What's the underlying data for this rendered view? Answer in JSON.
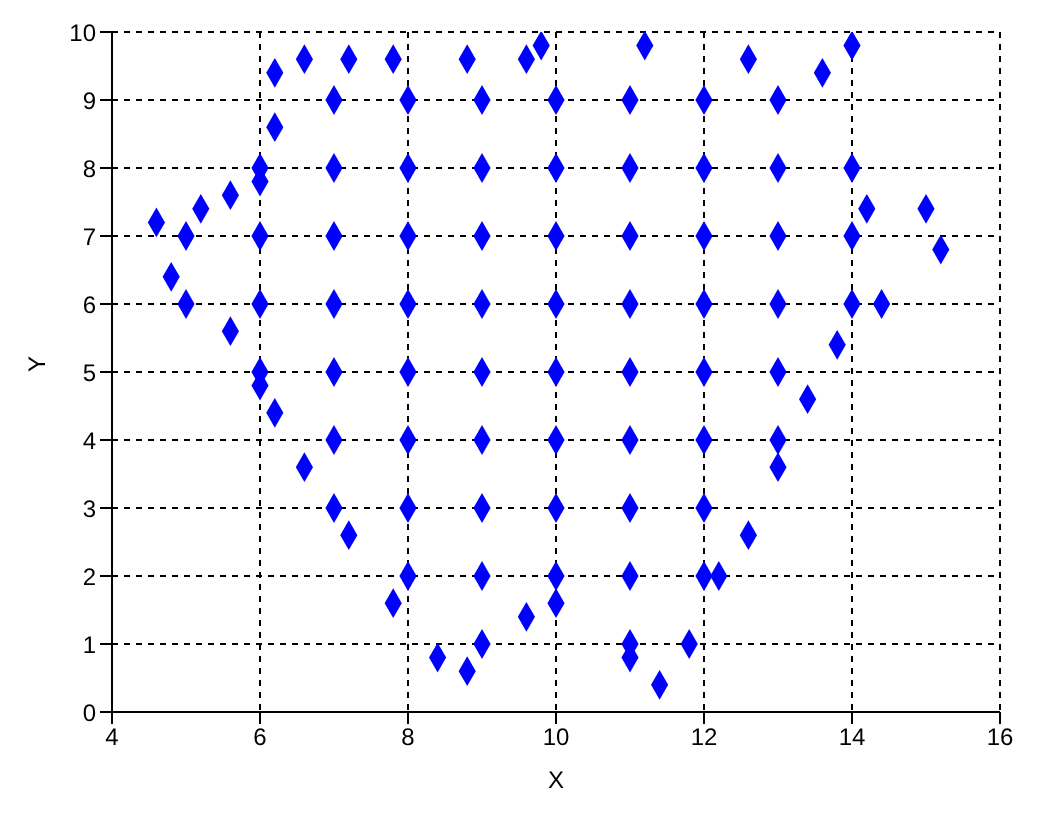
{
  "chart_data": {
    "type": "scatter",
    "xlabel": "X",
    "ylabel": "Y",
    "xlim": [
      4,
      16
    ],
    "xticks": [
      4,
      6,
      8,
      10,
      12,
      14,
      16
    ],
    "ylim": [
      0,
      10
    ],
    "yticks": [
      0,
      1,
      2,
      3,
      4,
      5,
      6,
      7,
      8,
      9,
      10
    ],
    "grid": true,
    "marker": "diamond",
    "legend": false,
    "series": [
      {
        "color": "#0000ff",
        "x": [
          4.6,
          5.2,
          4.8,
          5.6,
          6,
          6.2,
          6.6,
          7.2,
          7.8,
          8.4,
          8.8,
          9.6,
          10,
          11,
          11.4,
          11.8,
          12.2,
          12.6,
          13,
          13.4,
          13.8,
          14.4,
          15.2,
          15,
          14.2,
          14,
          14,
          13.6,
          12.6,
          11.2,
          9.8,
          9.6,
          8.8,
          7.8,
          7.2,
          6.6,
          6.2,
          6.2,
          6,
          5.6,
          7,
          8,
          9,
          10,
          11,
          12,
          13,
          6,
          7,
          8,
          9,
          10,
          11,
          12,
          13,
          5,
          6,
          7,
          8,
          9,
          10,
          11,
          12,
          13,
          14,
          5,
          6,
          7,
          8,
          9,
          10,
          11,
          12,
          13,
          14,
          6,
          7,
          8,
          9,
          10,
          11,
          12,
          13,
          7,
          8,
          9,
          10,
          11,
          12,
          13,
          7,
          8,
          9,
          10,
          11,
          12,
          8,
          9,
          10,
          11,
          12,
          9,
          11
        ],
        "values": [
          7.2,
          7.4,
          6.4,
          5.6,
          4.8,
          4.4,
          3.6,
          2.6,
          1.6,
          0.8,
          0.6,
          1.4,
          1.6,
          0.8,
          0.4,
          1,
          2,
          2.6,
          3.6,
          4.6,
          5.4,
          6,
          6.8,
          7.4,
          7.4,
          8,
          9.8,
          9.4,
          9.6,
          9.8,
          9.8,
          9.6,
          9.6,
          9.6,
          9.6,
          9.6,
          9.4,
          8.6,
          7.8,
          7.6,
          9,
          9,
          9,
          9,
          9,
          9,
          9,
          8,
          8,
          8,
          8,
          8,
          8,
          8,
          8,
          7,
          7,
          7,
          7,
          7,
          7,
          7,
          7,
          7,
          7,
          6,
          6,
          6,
          6,
          6,
          6,
          6,
          6,
          6,
          6,
          5,
          5,
          5,
          5,
          5,
          5,
          5,
          5,
          4,
          4,
          4,
          4,
          4,
          4,
          4,
          3,
          3,
          3,
          3,
          3,
          3,
          2,
          2,
          2,
          2,
          2,
          1,
          1
        ]
      }
    ]
  }
}
